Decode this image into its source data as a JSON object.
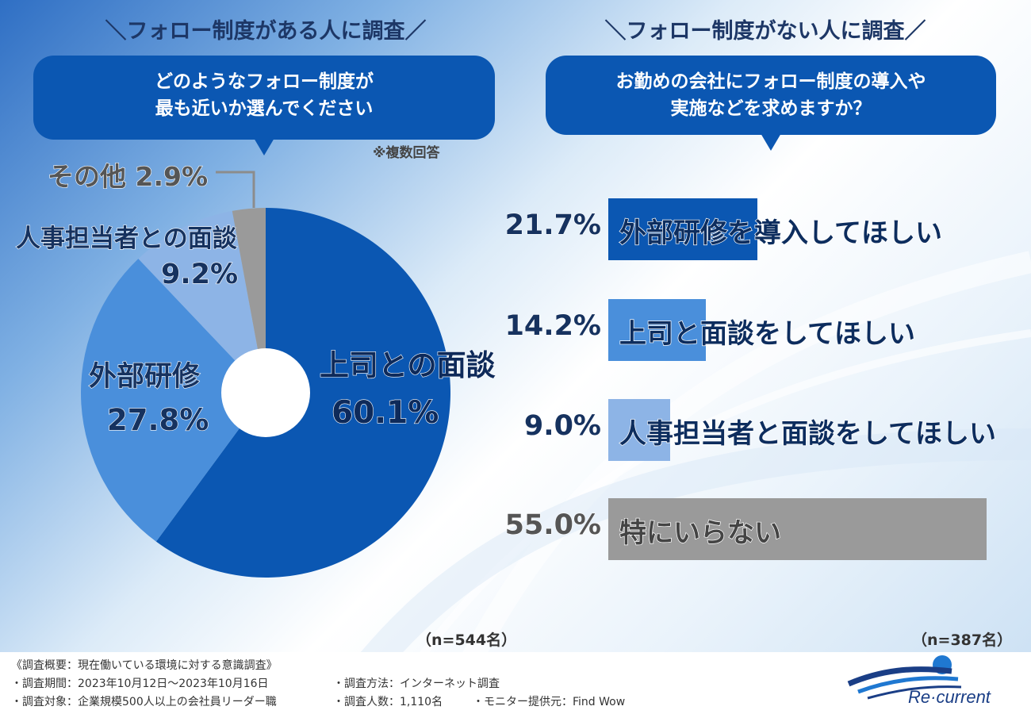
{
  "left": {
    "heading": "＼フォロー制度がある人に調査／",
    "question_line1": "どのようなフォロー制度が",
    "question_line2": "最も近いか選んでください",
    "note": "※複数回答",
    "n_label": "（n=544名）"
  },
  "right": {
    "heading": "＼フォロー制度がない人に調査／",
    "question_line1": "お勤めの会社にフォロー制度の導入や",
    "question_line2": "実施などを求めますか？",
    "n_label": "（n=387名）"
  },
  "chart_data": [
    {
      "type": "pie",
      "style": "donut",
      "slices": [
        {
          "label": "上司との面談",
          "value": 60.1,
          "value_text": "60.1%",
          "color": "#0b57b2"
        },
        {
          "label": "外部研修",
          "value": 27.8,
          "value_text": "27.8%",
          "color": "#4a8fdb"
        },
        {
          "label": "人事担当者との面談",
          "value": 9.2,
          "value_text": "9.2%",
          "color": "#8db4e6"
        },
        {
          "label": "その他",
          "value": 2.9,
          "value_text": "2.9%",
          "color": "#9a9a9a"
        }
      ]
    },
    {
      "type": "bar",
      "orientation": "horizontal",
      "xlim": [
        0,
        60
      ],
      "bars": [
        {
          "label": "外部研修を導入してほしい",
          "value": 21.7,
          "value_text": "21.7%",
          "color": "#0b57b2"
        },
        {
          "label": "上司と面談をしてほしい",
          "value": 14.2,
          "value_text": "14.2%",
          "color": "#4a8fdb"
        },
        {
          "label": "人事担当者と面談をしてほしい",
          "value": 9.0,
          "value_text": "9.0%",
          "color": "#8db4e6"
        },
        {
          "label": "特にいらない",
          "value": 55.0,
          "value_text": "55.0%",
          "color": "#9a9a9a"
        }
      ]
    }
  ],
  "footer": {
    "line1": "《調査概要：現在働いている環境に対する意識調査》",
    "period": "・調査期間：2023年10月12日～2023年10月16日",
    "method": "・調査方法：インターネット調査",
    "target": "・調査対象：企業規模500人以上の会社員リーダー職",
    "count": "・調査人数：1,110名",
    "provider": "・モニター提供元：Find Wow",
    "logo": "Re·current"
  }
}
